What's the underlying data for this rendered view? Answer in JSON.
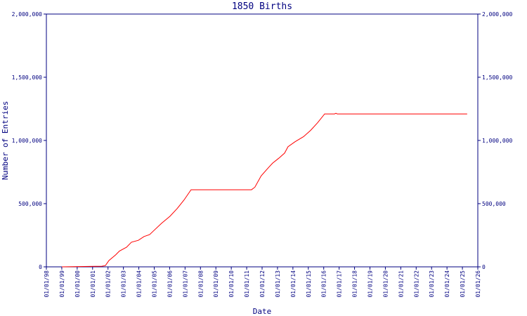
{
  "chart_data": {
    "type": "line",
    "title": "1850 Births",
    "x_label": "Date",
    "y_label": "Number of Entries",
    "x": [
      1999.0,
      2001.6,
      2001.83,
      2002.06,
      2002.5,
      2002.74,
      2003.2,
      2003.52,
      2003.97,
      2004.34,
      2004.7,
      2005.0,
      2005.48,
      2006.02,
      2006.48,
      2006.94,
      2007.39,
      2011.31,
      2011.53,
      2011.94,
      2012.45,
      2012.68,
      2013.09,
      2013.46,
      2013.68,
      2014.14,
      2014.69,
      2015.15,
      2015.6,
      2016.06,
      2016.7,
      2016.79,
      2016.88,
      2025.31
    ],
    "values": [
      0,
      5000,
      10000,
      50000,
      95000,
      125000,
      155000,
      195000,
      210000,
      240000,
      255000,
      290000,
      345000,
      400000,
      460000,
      530000,
      610000,
      610000,
      630000,
      720000,
      790000,
      820000,
      860000,
      900000,
      950000,
      990000,
      1030000,
      1080000,
      1140000,
      1210000,
      1210000,
      1215000,
      1210000,
      1210000
    ],
    "color": "#ff0000",
    "axis_color": "#000080",
    "xlim": [
      1998,
      2026
    ],
    "xticks": [
      {
        "value": 1998,
        "label": "01/01/98"
      },
      {
        "value": 1999,
        "label": "01/01/99"
      },
      {
        "value": 2000,
        "label": "01/01/00"
      },
      {
        "value": 2001,
        "label": "01/01/01"
      },
      {
        "value": 2002,
        "label": "01/01/02"
      },
      {
        "value": 2003,
        "label": "01/01/03"
      },
      {
        "value": 2004,
        "label": "01/01/04"
      },
      {
        "value": 2005,
        "label": "01/01/05"
      },
      {
        "value": 2006,
        "label": "01/01/06"
      },
      {
        "value": 2007,
        "label": "01/01/07"
      },
      {
        "value": 2008,
        "label": "01/01/08"
      },
      {
        "value": 2009,
        "label": "01/01/09"
      },
      {
        "value": 2010,
        "label": "01/01/10"
      },
      {
        "value": 2011,
        "label": "01/01/11"
      },
      {
        "value": 2012,
        "label": "01/01/12"
      },
      {
        "value": 2013,
        "label": "01/01/13"
      },
      {
        "value": 2014,
        "label": "01/01/14"
      },
      {
        "value": 2015,
        "label": "01/01/15"
      },
      {
        "value": 2016,
        "label": "01/01/16"
      },
      {
        "value": 2017,
        "label": "01/01/17"
      },
      {
        "value": 2018,
        "label": "01/01/18"
      },
      {
        "value": 2019,
        "label": "01/01/19"
      },
      {
        "value": 2020,
        "label": "01/01/20"
      },
      {
        "value": 2021,
        "label": "01/01/21"
      },
      {
        "value": 2022,
        "label": "01/01/22"
      },
      {
        "value": 2023,
        "label": "01/01/23"
      },
      {
        "value": 2024,
        "label": "01/01/24"
      },
      {
        "value": 2025,
        "label": "01/01/25"
      },
      {
        "value": 2026,
        "label": "01/01/26"
      }
    ],
    "ylim": [
      0,
      2000000
    ],
    "yticks": [
      0,
      {
        "value": 500000,
        "label": "500,000"
      },
      {
        "value": 1000000,
        "label": "1,000,000"
      },
      {
        "value": 1500000,
        "label": "1,500,000"
      },
      {
        "value": 2000000,
        "label": "2,000,000"
      }
    ],
    "y2lim": [
      0,
      2000000
    ],
    "y2ticks": [
      0,
      {
        "value": 500000,
        "label": "500,000"
      },
      {
        "value": 1000000,
        "label": "1,000,000"
      },
      {
        "value": 1500000,
        "label": "1,500,000"
      },
      {
        "value": 2000000,
        "label": "2,000,000"
      }
    ]
  }
}
